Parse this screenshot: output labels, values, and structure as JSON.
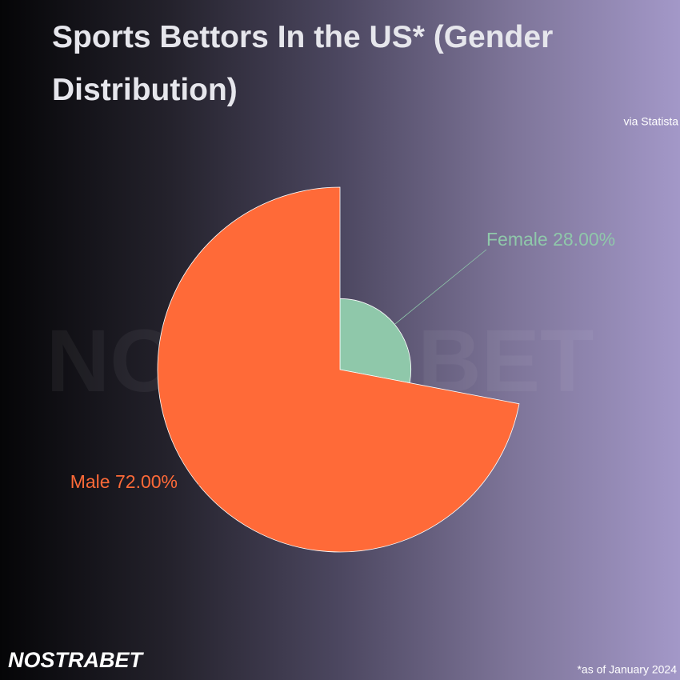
{
  "chart_data": {
    "type": "rose",
    "title": "Sports Bettors In the US* (Gender Distribution)",
    "source": "via Statista",
    "footnote": "*as of January 2024",
    "brand": "NOSTRABET",
    "categories": [
      "Female",
      "Male"
    ],
    "values": [
      28,
      72
    ],
    "value_labels": [
      "28.00%",
      "72.00%"
    ],
    "colors": [
      "#8fc8aa",
      "#ff6a38"
    ]
  }
}
